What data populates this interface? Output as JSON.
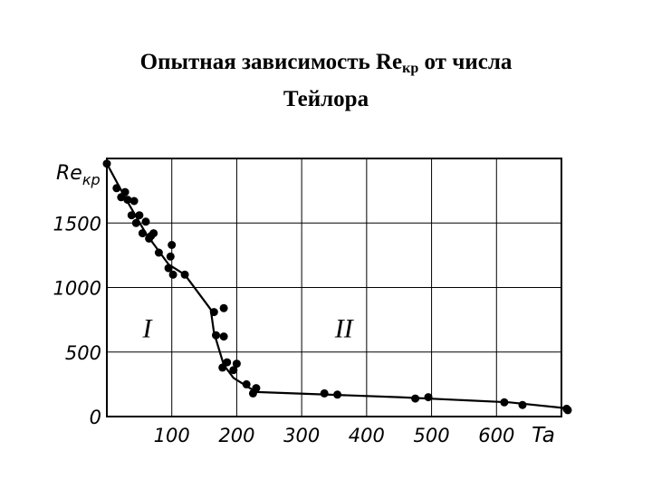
{
  "title": {
    "line1_pre": "Опытная зависимость Re",
    "line1_sub": "кр",
    "line1_post": " от числа",
    "line2": "Тейлора"
  },
  "chart_data": {
    "type": "scatter",
    "title": "Опытная зависимость Reкр от числа Тейлора",
    "xlabel": "Ta",
    "ylabel": "Reкр",
    "xlim": [
      0,
      700
    ],
    "ylim": [
      0,
      2000
    ],
    "x_ticks": [
      100,
      200,
      300,
      400,
      500,
      600
    ],
    "y_ticks": [
      0,
      500,
      1000,
      1500
    ],
    "grid": true,
    "region_labels": [
      {
        "text": "I",
        "x": 62,
        "y": 700
      },
      {
        "text": "II",
        "x": 365,
        "y": 700
      }
    ],
    "series": [
      {
        "kind": "points",
        "x": [
          0,
          15,
          22,
          28,
          32,
          38,
          42,
          45,
          50,
          55,
          60,
          65,
          68,
          72,
          80,
          95,
          98,
          100,
          102,
          120,
          165,
          168,
          178,
          180,
          180,
          185,
          195,
          200,
          215,
          225,
          230,
          335,
          355,
          475,
          495,
          612,
          640,
          708,
          715
        ],
        "y": [
          1960,
          1770,
          1700,
          1740,
          1680,
          1560,
          1670,
          1500,
          1560,
          1420,
          1510,
          1380,
          1400,
          1420,
          1270,
          1150,
          1240,
          1330,
          1100,
          1100,
          810,
          630,
          380,
          840,
          620,
          420,
          360,
          410,
          250,
          180,
          220,
          180,
          170,
          140,
          150,
          110,
          90,
          60,
          50
        ]
      },
      {
        "kind": "line",
        "x": [
          0,
          30,
          60,
          95,
          120,
          160,
          165,
          180,
          195,
          230,
          450,
          620,
          715
        ],
        "y": [
          1960,
          1680,
          1420,
          1180,
          1100,
          830,
          650,
          400,
          300,
          190,
          150,
          110,
          60
        ]
      }
    ]
  }
}
